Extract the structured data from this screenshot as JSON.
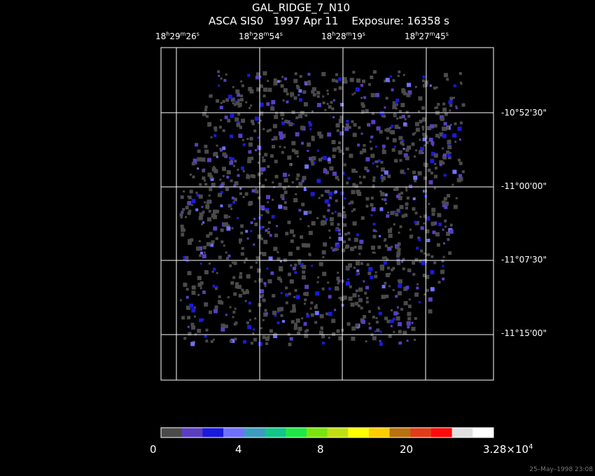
{
  "header": {
    "object": "GAL_RIDGE_7_N10",
    "subtitle": "ASCA SIS0   1997 Apr 11    Exposure: 16358 s"
  },
  "axes": {
    "ra_ticks": [
      {
        "h": "18",
        "m": "29",
        "s": "26"
      },
      {
        "h": "18",
        "m": "28",
        "s": "54"
      },
      {
        "h": "18",
        "m": "28",
        "s": "19"
      },
      {
        "h": "18",
        "m": "27",
        "s": "45"
      }
    ],
    "dec_ticks": [
      "-10°52'30\"",
      "-11°00'00\"",
      "-11°07'30\"",
      "-11°15'00\""
    ]
  },
  "colorbar": {
    "colors": [
      "#4a4a4a",
      "#5a3ec0",
      "#1a1adc",
      "#7070ff",
      "#3c9cc0",
      "#14c488",
      "#1ee846",
      "#7ae40e",
      "#c0e014",
      "#ffff00",
      "#ffcc00",
      "#b8720e",
      "#e03c1a",
      "#ff0a0a",
      "#e0e0e0",
      "#ffffff"
    ],
    "labels": [
      "0",
      "4",
      "8",
      "20"
    ],
    "max_mantissa": "3.28×10",
    "max_exponent": "4"
  },
  "footer": "25–May–1998 23:08"
}
